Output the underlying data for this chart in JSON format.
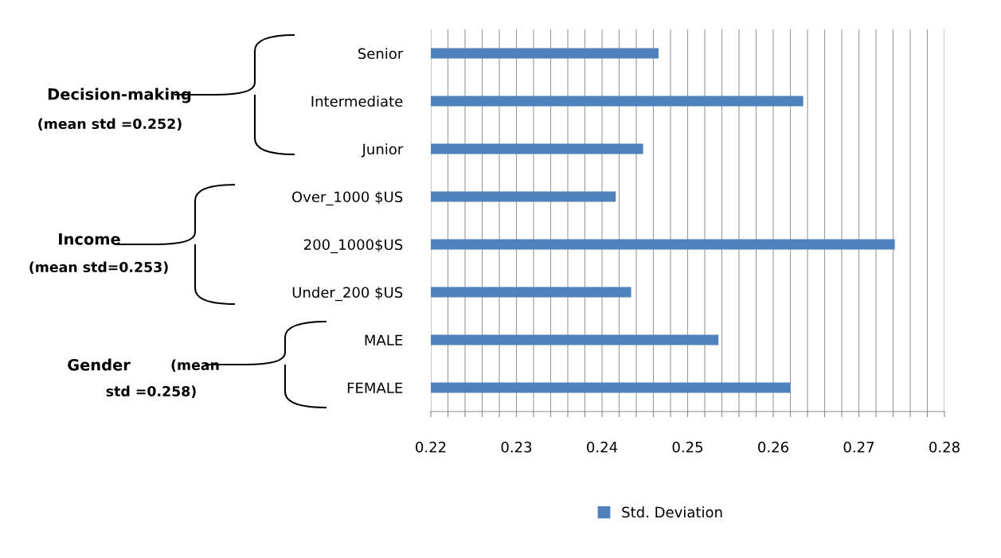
{
  "chart_data": {
    "type": "bar",
    "orientation": "horizontal",
    "categories": [
      "Senior",
      "Intermediate",
      "Junior",
      "Over_1000 $US",
      "200_1000$US",
      "Under_200 $US",
      "MALE",
      "FEMALE"
    ],
    "series": [
      {
        "name": "Std. Deviation",
        "color": "#4f81bd",
        "values": [
          0.2466,
          0.2635,
          0.2448,
          0.2416,
          0.2742,
          0.2434,
          0.2536,
          0.262
        ]
      }
    ],
    "xlim": [
      0.22,
      0.28
    ],
    "xticks": [
      0.22,
      {
        "value": 0.222,
        "label": null
      },
      {
        "value": 0.224,
        "label": null
      },
      {
        "value": 0.226,
        "label": null
      },
      {
        "value": 0.228,
        "label": null
      },
      0.23,
      {
        "value": 0.232,
        "label": null
      },
      {
        "value": 0.234,
        "label": null
      },
      {
        "value": 0.236,
        "label": null
      },
      {
        "value": 0.238,
        "label": null
      },
      0.24,
      {
        "value": 0.242,
        "label": null
      },
      {
        "value": 0.244,
        "label": null
      },
      {
        "value": 0.246,
        "label": null
      },
      {
        "value": 0.248,
        "label": null
      },
      0.25,
      {
        "value": 0.252,
        "label": null
      },
      {
        "value": 0.254,
        "label": null
      },
      {
        "value": 0.256,
        "label": null
      },
      {
        "value": 0.258,
        "label": null
      },
      0.26,
      {
        "value": 0.262,
        "label": null
      },
      {
        "value": 0.264,
        "label": null
      },
      {
        "value": 0.266,
        "label": null
      },
      {
        "value": 0.268,
        "label": null
      },
      0.27,
      {
        "value": 0.272,
        "label": null
      },
      {
        "value": 0.274,
        "label": null
      },
      {
        "value": 0.276,
        "label": null
      },
      {
        "value": 0.278,
        "label": null
      },
      0.28
    ],
    "grid": "x",
    "legend": "bottom",
    "annotations": [
      "Decision-making",
      "(mean std =0.252)",
      "Income",
      "(mean std=0.253)",
      "Gender",
      "(mean",
      "std =0.258)"
    ]
  }
}
